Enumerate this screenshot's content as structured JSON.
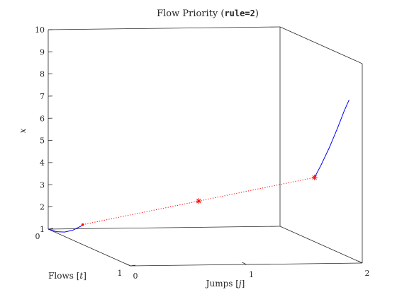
{
  "chart_data": {
    "type": "line",
    "title_prefix": "Flow Priority (",
    "title_code": "rule=2",
    "title_suffix": ")",
    "xlabel_prefix": "Jumps [",
    "xlabel_var": "j",
    "xlabel_suffix": "]",
    "ylabel_prefix": "Flows [",
    "ylabel_var": "t",
    "ylabel_suffix": "]",
    "zlabel": "x",
    "xlim": [
      0,
      2
    ],
    "ylim": [
      0,
      1
    ],
    "zlim": [
      1,
      10
    ],
    "xticks": [
      "0",
      "1",
      "2"
    ],
    "yticks": [
      "0",
      "1"
    ],
    "zticks": [
      "1",
      "2",
      "3",
      "4",
      "5",
      "6",
      "7",
      "8",
      "9",
      "10"
    ],
    "grid": false,
    "colors": {
      "flow": "#0000ff",
      "jump": "#ff0000",
      "axes": "#262626"
    },
    "series": [
      {
        "kind": "flow",
        "points": [
          {
            "j": 0,
            "t": 0.0,
            "x": 1.0
          },
          {
            "j": 0,
            "t": 0.1,
            "x": 1.05
          },
          {
            "j": 0,
            "t": 0.2,
            "x": 1.2
          },
          {
            "j": 0,
            "t": 0.3,
            "x": 1.45
          },
          {
            "j": 0,
            "t": 0.4,
            "x": 1.8
          },
          {
            "j": 0,
            "t": 0.42,
            "x": 1.9
          }
        ]
      },
      {
        "kind": "jump",
        "points": [
          {
            "j": 0,
            "t": 0.42,
            "x": 1.9
          },
          {
            "j": 1,
            "t": 0.42,
            "x": 2.9
          },
          {
            "j": 2,
            "t": 0.42,
            "x": 3.9
          }
        ]
      },
      {
        "kind": "flow",
        "points": [
          {
            "j": 2,
            "t": 0.42,
            "x": 3.9
          },
          {
            "j": 2,
            "t": 0.5,
            "x": 4.6
          },
          {
            "j": 2,
            "t": 0.6,
            "x": 5.55
          },
          {
            "j": 2,
            "t": 0.7,
            "x": 6.6
          },
          {
            "j": 2,
            "t": 0.78,
            "x": 7.5
          },
          {
            "j": 2,
            "t": 0.84,
            "x": 8.1
          }
        ]
      }
    ],
    "jump_markers": [
      {
        "j": 1,
        "t": 0.42,
        "x": 2.9
      },
      {
        "j": 2,
        "t": 0.42,
        "x": 3.9
      }
    ]
  }
}
